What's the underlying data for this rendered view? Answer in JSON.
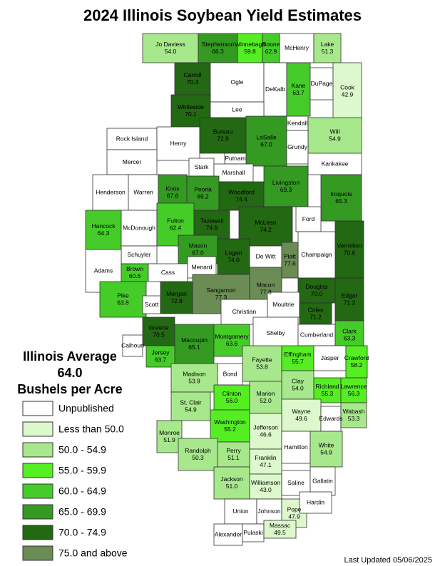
{
  "title": "2024 Illinois Soybean Yield Estimates",
  "legend": {
    "heading": "Illinois Average",
    "average": {
      "value": 64,
      "label": "64.0"
    },
    "unit": "Bushels per Acre",
    "items": [
      {
        "label": "Unpublished",
        "color": "#ffffff"
      },
      {
        "label": "Less than 50.0",
        "color": "#dcf8cc"
      },
      {
        "label": "50.0 - 54.9",
        "color": "#a8e88c"
      },
      {
        "label": "55.0 - 59.9",
        "color": "#55ee22"
      },
      {
        "label": "60.0 - 64.9",
        "color": "#45cc28"
      },
      {
        "label": "65.0 - 69.9",
        "color": "#349a22"
      },
      {
        "label": "70.0 - 74.9",
        "color": "#236812"
      },
      {
        "label": "75.0 and above",
        "color": "#6b8c55"
      }
    ]
  },
  "counties": [
    {
      "name": "Jo Daviess",
      "value": 54,
      "value_label": "54.0",
      "color": "#a8e88c"
    },
    {
      "name": "Stephenson",
      "value": 66.3,
      "color": "#349a22"
    },
    {
      "name": "Winnebago",
      "value": 59.8,
      "color": "#55ee22"
    },
    {
      "name": "Boone",
      "value": 62.9,
      "color": "#45cc28"
    },
    {
      "name": "McHenry",
      "color": "#ffffff"
    },
    {
      "name": "Lake",
      "value": 51.3,
      "color": "#a8e88c"
    },
    {
      "name": "Carroll",
      "value": 70.3,
      "color": "#236812"
    },
    {
      "name": "Ogle",
      "color": "#ffffff"
    },
    {
      "name": "DeKalb",
      "color": "#ffffff"
    },
    {
      "name": "Kane",
      "value": 63.7,
      "color": "#45cc28"
    },
    {
      "name": "DuPage",
      "color": "#ffffff"
    },
    {
      "name": "Cook",
      "value": 42.9,
      "color": "#dcf8cc"
    },
    {
      "name": "Whiteside",
      "value": 70.1,
      "color": "#236812"
    },
    {
      "name": "Lee",
      "color": "#ffffff"
    },
    {
      "name": "Rock Island",
      "color": "#ffffff"
    },
    {
      "name": "Henry",
      "color": "#ffffff"
    },
    {
      "name": "Bureau",
      "value": 72.9,
      "color": "#236812"
    },
    {
      "name": "LaSalle",
      "value": 67,
      "value_label": "67.0",
      "color": "#349a22"
    },
    {
      "name": "Kendall",
      "color": "#ffffff"
    },
    {
      "name": "Will",
      "value": 54.9,
      "color": "#a8e88c"
    },
    {
      "name": "Grundy",
      "color": "#ffffff"
    },
    {
      "name": "Mercer",
      "color": "#ffffff"
    },
    {
      "name": "Putnam",
      "color": "#ffffff"
    },
    {
      "name": "Stark",
      "color": "#ffffff"
    },
    {
      "name": "Marshall",
      "color": "#ffffff"
    },
    {
      "name": "Kankakee",
      "color": "#ffffff"
    },
    {
      "name": "Henderson",
      "color": "#ffffff"
    },
    {
      "name": "Warren",
      "color": "#ffffff"
    },
    {
      "name": "Knox",
      "value": 67.6,
      "color": "#349a22"
    },
    {
      "name": "Peoria",
      "value": 69.2,
      "color": "#349a22"
    },
    {
      "name": "Woodford",
      "value": 74.4,
      "color": "#236812"
    },
    {
      "name": "Livingston",
      "value": 69.3,
      "color": "#349a22"
    },
    {
      "name": "Iroquois",
      "value": 65.3,
      "color": "#349a22"
    },
    {
      "name": "Hancock",
      "value": 64.3,
      "color": "#45cc28"
    },
    {
      "name": "McDonough",
      "color": "#ffffff"
    },
    {
      "name": "Fulton",
      "value": 62.4,
      "color": "#45cc28"
    },
    {
      "name": "Tazewell",
      "value": 74.9,
      "color": "#236812"
    },
    {
      "name": "McLean",
      "value": 74.2,
      "color": "#236812"
    },
    {
      "name": "Ford",
      "color": "#ffffff"
    },
    {
      "name": "Vermilion",
      "value": 70.6,
      "color": "#236812"
    },
    {
      "name": "Schuyler",
      "color": "#ffffff"
    },
    {
      "name": "Mason",
      "value": 67,
      "value_label": "67.0",
      "color": "#349a22"
    },
    {
      "name": "Logan",
      "value": 74,
      "value_label": "74.0",
      "color": "#236812"
    },
    {
      "name": "De Witt",
      "color": "#ffffff"
    },
    {
      "name": "Champaign",
      "color": "#ffffff"
    },
    {
      "name": "Piatt",
      "value": 77.6,
      "color": "#6b8c55"
    },
    {
      "name": "Adams",
      "color": "#ffffff"
    },
    {
      "name": "Brown",
      "value": 60.6,
      "color": "#45cc28"
    },
    {
      "name": "Cass",
      "color": "#ffffff"
    },
    {
      "name": "Menard",
      "color": "#ffffff"
    },
    {
      "name": "Pike",
      "value": 63.8,
      "color": "#45cc28"
    },
    {
      "name": "Scott",
      "color": "#ffffff"
    },
    {
      "name": "Morgan",
      "value": 72.8,
      "color": "#236812"
    },
    {
      "name": "Sangamon",
      "value": 77.3,
      "color": "#6b8c55"
    },
    {
      "name": "Macon",
      "value": 77.8,
      "color": "#6b8c55"
    },
    {
      "name": "Douglas",
      "value": 70,
      "value_label": "70.0",
      "color": "#236812"
    },
    {
      "name": "Edgar",
      "value": 71.2,
      "color": "#236812"
    },
    {
      "name": "Christian",
      "color": "#ffffff"
    },
    {
      "name": "Moultrie",
      "color": "#ffffff"
    },
    {
      "name": "Coles",
      "value": 71.2,
      "color": "#236812"
    },
    {
      "name": "Shelby",
      "color": "#ffffff"
    },
    {
      "name": "Cumberland",
      "color": "#ffffff"
    },
    {
      "name": "Clark",
      "value": 63.3,
      "color": "#45cc28"
    },
    {
      "name": "Greene",
      "value": 70.5,
      "color": "#236812"
    },
    {
      "name": "Macoupin",
      "value": 65.1,
      "color": "#349a22"
    },
    {
      "name": "Montgomery",
      "value": 63.6,
      "color": "#45cc28"
    },
    {
      "name": "Calhoun",
      "color": "#ffffff"
    },
    {
      "name": "Jersey",
      "value": 63.7,
      "color": "#45cc28"
    },
    {
      "name": "Fayette",
      "value": 53.8,
      "color": "#a8e88c"
    },
    {
      "name": "Effingham",
      "value": 55.7,
      "color": "#55ee22"
    },
    {
      "name": "Jasper",
      "color": "#ffffff"
    },
    {
      "name": "Crawford",
      "value": 58.2,
      "color": "#55ee22"
    },
    {
      "name": "Madison",
      "value": 53.9,
      "color": "#a8e88c"
    },
    {
      "name": "Bond",
      "color": "#ffffff"
    },
    {
      "name": "Clay",
      "value": 54,
      "value_label": "54.0",
      "color": "#a8e88c"
    },
    {
      "name": "Richland",
      "value": 55.3,
      "color": "#55ee22"
    },
    {
      "name": "Lawrence",
      "value": 56.3,
      "color": "#55ee22"
    },
    {
      "name": "St. Clair",
      "value": 54.9,
      "color": "#a8e88c"
    },
    {
      "name": "Clinton",
      "value": 56,
      "value_label": "56.0",
      "color": "#55ee22"
    },
    {
      "name": "Marion",
      "value": 52,
      "value_label": "52.0",
      "color": "#a8e88c"
    },
    {
      "name": "Wayne",
      "value": 49.6,
      "color": "#dcf8cc"
    },
    {
      "name": "Edwards",
      "color": "#ffffff"
    },
    {
      "name": "Wabash",
      "value": 53.3,
      "color": "#a8e88c"
    },
    {
      "name": "Monroe",
      "value": 51.9,
      "color": "#a8e88c"
    },
    {
      "name": "Washington",
      "value": 55.2,
      "color": "#55ee22"
    },
    {
      "name": "Jefferson",
      "value": 46.6,
      "color": "#dcf8cc"
    },
    {
      "name": "Randolph",
      "value": 50.3,
      "color": "#a8e88c"
    },
    {
      "name": "Perry",
      "value": 51.1,
      "color": "#a8e88c"
    },
    {
      "name": "Franklin",
      "value": 47.1,
      "color": "#dcf8cc"
    },
    {
      "name": "Hamilton",
      "color": "#ffffff"
    },
    {
      "name": "White",
      "value": 54.9,
      "color": "#a8e88c"
    },
    {
      "name": "Jackson",
      "value": 51,
      "value_label": "51.0",
      "color": "#a8e88c"
    },
    {
      "name": "Williamson",
      "value": 43,
      "value_label": "43.0",
      "color": "#dcf8cc"
    },
    {
      "name": "Saline",
      "color": "#ffffff"
    },
    {
      "name": "Gallatin",
      "color": "#ffffff"
    },
    {
      "name": "Union",
      "color": "#ffffff"
    },
    {
      "name": "Johnson",
      "color": "#ffffff"
    },
    {
      "name": "Pope",
      "value": 47.9,
      "color": "#dcf8cc"
    },
    {
      "name": "Hardin",
      "color": "#ffffff"
    },
    {
      "name": "Alexander",
      "color": "#ffffff"
    },
    {
      "name": "Pulaski",
      "color": "#ffffff"
    },
    {
      "name": "Massac",
      "value": 49.5,
      "color": "#dcf8cc"
    }
  ],
  "footer": "Last Updated 05/06/2025"
}
